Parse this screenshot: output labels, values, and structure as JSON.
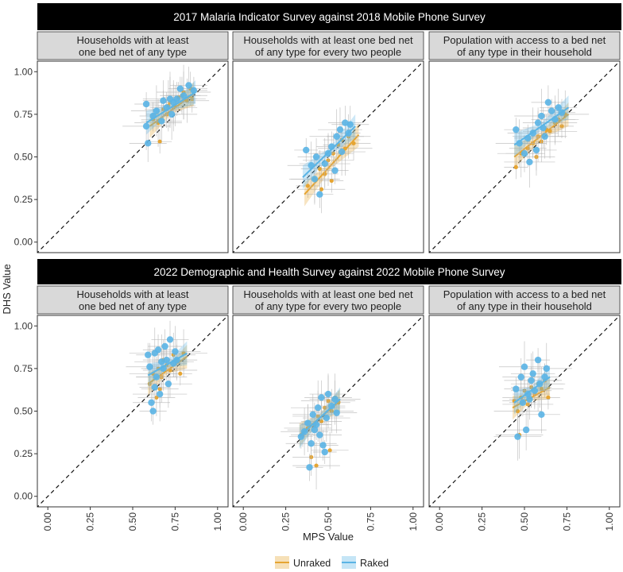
{
  "figure": {
    "y_axis_title": "DHS Value",
    "x_axis_title": "MPS Value",
    "x_ticks": [
      "0.00",
      "0.25",
      "0.50",
      "0.75",
      "1.00"
    ],
    "y_ticks": [
      "0.00",
      "0.25",
      "0.50",
      "0.75",
      "1.00"
    ],
    "legend": [
      {
        "key": "unraked",
        "label": "Unraked",
        "color": "#E6A532"
      },
      {
        "key": "raked",
        "label": "Raked",
        "color": "#5AB4E5"
      }
    ],
    "colors": {
      "unraked": "#E6A532",
      "raked": "#5AB4E5",
      "strip_bg": "#D9D9D9",
      "header_bg": "#000000"
    }
  },
  "chart_data": [
    {
      "type": "scatter",
      "row": 0,
      "col": 0,
      "title": "2017 Malaria Indicator Survey against 2018 Mobile Phone Survey",
      "facet_line1": "Households with at least",
      "facet_line2": "one bed net of any type",
      "xlabel": "MPS Value",
      "ylabel": "DHS Value",
      "xlim": [
        0,
        1
      ],
      "ylim": [
        0,
        1
      ],
      "series": [
        {
          "name": "Unraked",
          "points": [
            [
              0.62,
              0.72
            ],
            [
              0.65,
              0.7
            ],
            [
              0.68,
              0.78
            ],
            [
              0.7,
              0.75
            ],
            [
              0.72,
              0.82
            ],
            [
              0.75,
              0.8
            ],
            [
              0.77,
              0.85
            ],
            [
              0.8,
              0.88
            ],
            [
              0.82,
              0.83
            ],
            [
              0.84,
              0.9
            ],
            [
              0.66,
              0.59
            ],
            [
              0.74,
              0.79
            ],
            [
              0.79,
              0.86
            ],
            [
              0.85,
              0.84
            ],
            [
              0.71,
              0.8
            ]
          ],
          "fit": [
            [
              0.6,
              0.68
            ],
            [
              0.86,
              0.87
            ]
          ]
        },
        {
          "name": "Raked",
          "points": [
            [
              0.58,
              0.81
            ],
            [
              0.58,
              0.68
            ],
            [
              0.59,
              0.58
            ],
            [
              0.62,
              0.74
            ],
            [
              0.64,
              0.77
            ],
            [
              0.68,
              0.83
            ],
            [
              0.7,
              0.79
            ],
            [
              0.72,
              0.84
            ],
            [
              0.74,
              0.82
            ],
            [
              0.76,
              0.84
            ],
            [
              0.78,
              0.9
            ],
            [
              0.8,
              0.86
            ],
            [
              0.83,
              0.92
            ],
            [
              0.86,
              0.89
            ],
            [
              0.73,
              0.75
            ],
            [
              0.67,
              0.71
            ]
          ],
          "fit": [
            [
              0.58,
              0.7
            ],
            [
              0.87,
              0.88
            ]
          ]
        }
      ]
    },
    {
      "type": "scatter",
      "row": 0,
      "col": 1,
      "title": "2017 Malaria Indicator Survey against 2018 Mobile Phone Survey",
      "facet_line1": "Households with at least one bed net",
      "facet_line2": "of any type for every two people",
      "xlabel": "MPS Value",
      "ylabel": "DHS Value",
      "xlim": [
        0,
        1
      ],
      "ylim": [
        0,
        1
      ],
      "series": [
        {
          "name": "Unraked",
          "points": [
            [
              0.38,
              0.33
            ],
            [
              0.42,
              0.37
            ],
            [
              0.45,
              0.43
            ],
            [
              0.48,
              0.4
            ],
            [
              0.5,
              0.48
            ],
            [
              0.53,
              0.52
            ],
            [
              0.56,
              0.57
            ],
            [
              0.6,
              0.55
            ],
            [
              0.62,
              0.62
            ],
            [
              0.65,
              0.58
            ],
            [
              0.52,
              0.36
            ],
            [
              0.46,
              0.31
            ],
            [
              0.58,
              0.6
            ]
          ],
          "fit": [
            [
              0.36,
              0.28
            ],
            [
              0.68,
              0.63
            ]
          ]
        },
        {
          "name": "Raked",
          "points": [
            [
              0.37,
              0.54
            ],
            [
              0.4,
              0.45
            ],
            [
              0.43,
              0.5
            ],
            [
              0.45,
              0.28
            ],
            [
              0.48,
              0.46
            ],
            [
              0.5,
              0.52
            ],
            [
              0.52,
              0.56
            ],
            [
              0.55,
              0.62
            ],
            [
              0.57,
              0.66
            ],
            [
              0.6,
              0.7
            ],
            [
              0.62,
              0.64
            ],
            [
              0.58,
              0.53
            ],
            [
              0.63,
              0.69
            ],
            [
              0.54,
              0.42
            ],
            [
              0.42,
              0.37
            ]
          ],
          "fit": [
            [
              0.35,
              0.38
            ],
            [
              0.66,
              0.68
            ]
          ]
        }
      ]
    },
    {
      "type": "scatter",
      "row": 0,
      "col": 2,
      "title": "2017 Malaria Indicator Survey against 2018 Mobile Phone Survey",
      "facet_line1": "Population with access to a bed net",
      "facet_line2": "of any type in their household",
      "xlabel": "MPS Value",
      "ylabel": "DHS Value",
      "xlim": [
        0,
        1
      ],
      "ylim": [
        0,
        1
      ],
      "series": [
        {
          "name": "Unraked",
          "points": [
            [
              0.45,
              0.44
            ],
            [
              0.48,
              0.52
            ],
            [
              0.52,
              0.55
            ],
            [
              0.55,
              0.58
            ],
            [
              0.58,
              0.62
            ],
            [
              0.6,
              0.59
            ],
            [
              0.63,
              0.66
            ],
            [
              0.65,
              0.65
            ],
            [
              0.68,
              0.7
            ],
            [
              0.7,
              0.72
            ],
            [
              0.72,
              0.68
            ],
            [
              0.74,
              0.75
            ],
            [
              0.57,
              0.5
            ]
          ],
          "fit": [
            [
              0.44,
              0.5
            ],
            [
              0.76,
              0.75
            ]
          ]
        },
        {
          "name": "Raked",
          "points": [
            [
              0.45,
              0.66
            ],
            [
              0.47,
              0.58
            ],
            [
              0.5,
              0.52
            ],
            [
              0.52,
              0.61
            ],
            [
              0.55,
              0.64
            ],
            [
              0.57,
              0.54
            ],
            [
              0.58,
              0.7
            ],
            [
              0.6,
              0.74
            ],
            [
              0.62,
              0.62
            ],
            [
              0.64,
              0.82
            ],
            [
              0.66,
              0.77
            ],
            [
              0.68,
              0.72
            ],
            [
              0.7,
              0.79
            ],
            [
              0.72,
              0.76
            ],
            [
              0.53,
              0.47
            ],
            [
              0.61,
              0.67
            ]
          ],
          "fit": [
            [
              0.44,
              0.57
            ],
            [
              0.76,
              0.79
            ]
          ]
        }
      ]
    },
    {
      "type": "scatter",
      "row": 1,
      "col": 0,
      "title": "2022 Demographic and Health Survey against 2022 Mobile Phone Survey",
      "facet_line1": "Households with at least",
      "facet_line2": "one bed net of any type",
      "xlabel": "MPS Value",
      "ylabel": "DHS Value",
      "xlim": [
        0,
        1
      ],
      "ylim": [
        0,
        1
      ],
      "series": [
        {
          "name": "Unraked",
          "points": [
            [
              0.6,
              0.66
            ],
            [
              0.62,
              0.72
            ],
            [
              0.64,
              0.58
            ],
            [
              0.65,
              0.75
            ],
            [
              0.67,
              0.7
            ],
            [
              0.68,
              0.8
            ],
            [
              0.7,
              0.77
            ],
            [
              0.72,
              0.74
            ],
            [
              0.74,
              0.83
            ],
            [
              0.76,
              0.79
            ],
            [
              0.78,
              0.72
            ],
            [
              0.8,
              0.84
            ],
            [
              0.66,
              0.63
            ]
          ],
          "fit": [
            [
              0.59,
              0.66
            ],
            [
              0.82,
              0.82
            ]
          ]
        },
        {
          "name": "Raked",
          "points": [
            [
              0.59,
              0.83
            ],
            [
              0.6,
              0.76
            ],
            [
              0.61,
              0.55
            ],
            [
              0.62,
              0.5
            ],
            [
              0.63,
              0.84
            ],
            [
              0.64,
              0.7
            ],
            [
              0.65,
              0.86
            ],
            [
              0.66,
              0.6
            ],
            [
              0.68,
              0.75
            ],
            [
              0.69,
              0.88
            ],
            [
              0.7,
              0.8
            ],
            [
              0.71,
              0.66
            ],
            [
              0.72,
              0.92
            ],
            [
              0.74,
              0.78
            ],
            [
              0.75,
              0.85
            ],
            [
              0.76,
              0.8
            ],
            [
              0.63,
              0.64
            ],
            [
              0.67,
              0.79
            ]
          ],
          "fit": [
            [
              0.59,
              0.71
            ],
            [
              0.82,
              0.84
            ]
          ]
        }
      ]
    },
    {
      "type": "scatter",
      "row": 1,
      "col": 1,
      "title": "2022 Demographic and Health Survey against 2022 Mobile Phone Survey",
      "facet_line1": "Households with at least one bed net",
      "facet_line2": "of any type for every two people",
      "xlabel": "MPS Value",
      "ylabel": "DHS Value",
      "xlim": [
        0,
        1
      ],
      "ylim": [
        0,
        1
      ],
      "series": [
        {
          "name": "Unraked",
          "points": [
            [
              0.35,
              0.36
            ],
            [
              0.38,
              0.4
            ],
            [
              0.4,
              0.23
            ],
            [
              0.42,
              0.42
            ],
            [
              0.44,
              0.47
            ],
            [
              0.46,
              0.44
            ],
            [
              0.48,
              0.52
            ],
            [
              0.5,
              0.56
            ],
            [
              0.52,
              0.5
            ],
            [
              0.54,
              0.58
            ],
            [
              0.56,
              0.55
            ],
            [
              0.43,
              0.18
            ],
            [
              0.51,
              0.27
            ]
          ],
          "fit": [
            [
              0.33,
              0.36
            ],
            [
              0.57,
              0.56
            ]
          ]
        },
        {
          "name": "Raked",
          "points": [
            [
              0.34,
              0.35
            ],
            [
              0.36,
              0.38
            ],
            [
              0.38,
              0.43
            ],
            [
              0.39,
              0.17
            ],
            [
              0.4,
              0.31
            ],
            [
              0.41,
              0.48
            ],
            [
              0.43,
              0.42
            ],
            [
              0.44,
              0.52
            ],
            [
              0.45,
              0.36
            ],
            [
              0.46,
              0.58
            ],
            [
              0.48,
              0.26
            ],
            [
              0.49,
              0.46
            ],
            [
              0.5,
              0.6
            ],
            [
              0.52,
              0.53
            ],
            [
              0.54,
              0.57
            ],
            [
              0.55,
              0.49
            ],
            [
              0.47,
              0.3
            ],
            [
              0.42,
              0.39
            ]
          ],
          "fit": [
            [
              0.33,
              0.35
            ],
            [
              0.57,
              0.57
            ]
          ]
        }
      ]
    },
    {
      "type": "scatter",
      "row": 1,
      "col": 2,
      "title": "2022 Demographic and Health Survey against 2022 Mobile Phone Survey",
      "facet_line1": "Population with access to a bed net",
      "facet_line2": "of any type in their household",
      "xlabel": "MPS Value",
      "ylabel": "DHS Value",
      "xlim": [
        0,
        1
      ],
      "ylim": [
        0,
        1
      ],
      "series": [
        {
          "name": "Unraked",
          "points": [
            [
              0.44,
              0.56
            ],
            [
              0.46,
              0.5
            ],
            [
              0.48,
              0.58
            ],
            [
              0.5,
              0.62
            ],
            [
              0.52,
              0.54
            ],
            [
              0.54,
              0.64
            ],
            [
              0.56,
              0.6
            ],
            [
              0.58,
              0.66
            ],
            [
              0.6,
              0.63
            ],
            [
              0.62,
              0.68
            ],
            [
              0.64,
              0.58
            ],
            [
              0.47,
              0.36
            ]
          ],
          "fit": [
            [
              0.43,
              0.52
            ],
            [
              0.65,
              0.64
            ]
          ]
        },
        {
          "name": "Raked",
          "points": [
            [
              0.45,
              0.63
            ],
            [
              0.46,
              0.35
            ],
            [
              0.48,
              0.7
            ],
            [
              0.49,
              0.55
            ],
            [
              0.5,
              0.76
            ],
            [
              0.51,
              0.39
            ],
            [
              0.52,
              0.6
            ],
            [
              0.54,
              0.68
            ],
            [
              0.55,
              0.72
            ],
            [
              0.56,
              0.62
            ],
            [
              0.58,
              0.8
            ],
            [
              0.59,
              0.66
            ],
            [
              0.6,
              0.48
            ],
            [
              0.62,
              0.7
            ],
            [
              0.63,
              0.75
            ],
            [
              0.53,
              0.57
            ]
          ],
          "fit": [
            [
              0.44,
              0.55
            ],
            [
              0.65,
              0.7
            ]
          ]
        }
      ]
    }
  ]
}
